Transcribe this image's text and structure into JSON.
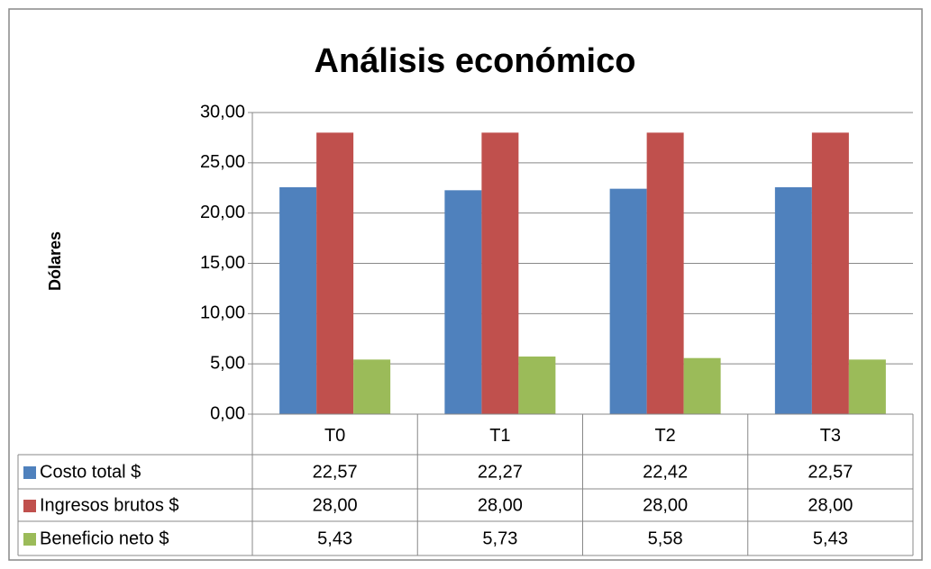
{
  "chart_data": {
    "type": "bar",
    "title": "Análisis económico",
    "y_label": "Dólares",
    "categories": [
      "T0",
      "T1",
      "T2",
      "T3"
    ],
    "series": [
      {
        "name": "Costo total $",
        "color": "#4f81bd",
        "values": [
          22.57,
          22.27,
          22.42,
          22.57
        ],
        "value_labels": [
          "22,57",
          "22,27",
          "22,42",
          "22,57"
        ]
      },
      {
        "name": "Ingresos brutos $",
        "color": "#c0504d",
        "values": [
          28,
          28,
          28,
          28
        ],
        "value_labels": [
          "28,00",
          "28,00",
          "28,00",
          "28,00"
        ]
      },
      {
        "name": "Beneficio neto $",
        "color": "#9bbb59",
        "values": [
          5.43,
          5.73,
          5.58,
          5.43
        ],
        "value_labels": [
          "5,43",
          "5,73",
          "5,58",
          "5,43"
        ]
      }
    ],
    "ylim": [
      0,
      30
    ],
    "yticks": [
      {
        "value": 0,
        "label": "0,00"
      },
      {
        "value": 5,
        "label": "5,00"
      },
      {
        "value": 10,
        "label": "10,00"
      },
      {
        "value": 15,
        "label": "15,00"
      },
      {
        "value": 20,
        "label": "20,00"
      },
      {
        "value": 25,
        "label": "25,00"
      },
      {
        "value": 30,
        "label": "30,00"
      }
    ],
    "grid": true
  }
}
